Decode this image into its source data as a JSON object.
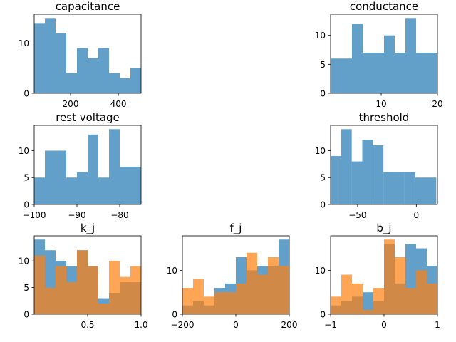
{
  "chart_data": [
    {
      "id": "capacitance",
      "type": "bar",
      "title": "capacitance",
      "xlim": [
        48,
        495
      ],
      "ylim": [
        0,
        15.75
      ],
      "xticks": [
        200,
        400
      ],
      "yticks": [
        0,
        10
      ],
      "series": [
        {
          "color": "#1f77b4",
          "edges": [
            48,
            92.7,
            137.4,
            182.1,
            226.8,
            271.5,
            316.2,
            360.9,
            405.6,
            450.3,
            495
          ],
          "values": [
            14,
            15,
            12,
            4,
            9,
            7,
            9,
            4,
            3,
            5
          ]
        }
      ]
    },
    {
      "id": "conductance",
      "type": "bar",
      "title": "conductance",
      "xlim": [
        1,
        20
      ],
      "ylim": [
        0,
        13.65
      ],
      "xticks": [
        10,
        20
      ],
      "yticks": [
        0,
        5,
        10
      ],
      "series": [
        {
          "color": "#1f77b4",
          "edges": [
            1,
            2.9,
            4.8,
            6.7,
            8.6,
            10.5,
            12.4,
            14.3,
            16.2,
            18.1,
            20
          ],
          "values": [
            6,
            6,
            12,
            7,
            7,
            10,
            7,
            13,
            7,
            7
          ]
        }
      ]
    },
    {
      "id": "rest-voltage",
      "type": "bar",
      "title": "rest voltage",
      "xlim": [
        -100,
        -75
      ],
      "ylim": [
        0,
        14.7
      ],
      "xticks": [
        -100,
        -90,
        -80
      ],
      "yticks": [
        0,
        5,
        10
      ],
      "series": [
        {
          "color": "#1f77b4",
          "edges": [
            -100,
            -97.5,
            -95,
            -92.5,
            -90,
            -87.5,
            -85,
            -82.5,
            -80,
            -77.5,
            -75
          ],
          "values": [
            5,
            10,
            10,
            5,
            6,
            13,
            5,
            14,
            7,
            7
          ]
        }
      ]
    },
    {
      "id": "threshold",
      "type": "bar",
      "title": "threshold",
      "xlim": [
        -73,
        18
      ],
      "ylim": [
        0,
        14.7
      ],
      "xticks": [
        -50,
        0
      ],
      "yticks": [
        0,
        5,
        10
      ],
      "series": [
        {
          "color": "#1f77b4",
          "edges": [
            -73,
            -64,
            -55,
            -46,
            -37,
            -28,
            -19,
            -10,
            -1,
            8,
            17
          ],
          "values": [
            9,
            14,
            8,
            12,
            11,
            6,
            6,
            6,
            5,
            5
          ]
        }
      ]
    },
    {
      "id": "k-j",
      "type": "bar",
      "title": "k_j",
      "xlim": [
        0,
        1
      ],
      "ylim": [
        0,
        14.7
      ],
      "xticks": [
        0.5,
        1.0
      ],
      "xtick_labels": [
        "0.5",
        "1.0"
      ],
      "yticks": [
        0,
        5,
        10
      ],
      "series": [
        {
          "color": "#1f77b4",
          "edges": [
            0,
            0.1,
            0.2,
            0.3,
            0.4,
            0.5,
            0.6,
            0.7,
            0.8,
            0.9,
            1.0
          ],
          "values": [
            14,
            12,
            10,
            9,
            12,
            9,
            3,
            4,
            6,
            6
          ]
        },
        {
          "color": "#ff7f0e",
          "edges": [
            0,
            0.1,
            0.2,
            0.3,
            0.4,
            0.5,
            0.6,
            0.7,
            0.8,
            0.9,
            1.0
          ],
          "values": [
            11,
            5,
            9,
            6,
            12,
            9,
            2,
            10,
            7,
            9
          ]
        }
      ]
    },
    {
      "id": "f-j",
      "type": "bar",
      "title": "f_j",
      "xlim": [
        -200,
        200
      ],
      "ylim": [
        0,
        17.85
      ],
      "xticks": [
        -200,
        0,
        200
      ],
      "yticks": [
        0,
        10
      ],
      "series": [
        {
          "color": "#1f77b4",
          "edges": [
            -200,
            -160,
            -120,
            -80,
            -40,
            0,
            40,
            80,
            120,
            160,
            200
          ],
          "values": [
            2,
            3,
            2,
            6,
            7,
            13,
            10,
            11,
            11,
            17
          ]
        },
        {
          "color": "#ff7f0e",
          "edges": [
            -200,
            -160,
            -120,
            -80,
            -40,
            0,
            40,
            80,
            120,
            160,
            200
          ],
          "values": [
            6,
            8,
            4,
            5,
            5,
            7,
            14,
            9,
            13,
            11
          ]
        }
      ]
    },
    {
      "id": "b-j",
      "type": "bar",
      "title": "b_j",
      "xlim": [
        -1,
        1
      ],
      "ylim": [
        0,
        17.85
      ],
      "xticks": [
        -1,
        0,
        1
      ],
      "yticks": [
        0,
        10
      ],
      "series": [
        {
          "color": "#1f77b4",
          "edges": [
            -1,
            -0.8,
            -0.6,
            -0.4,
            -0.2,
            0,
            0.2,
            0.4,
            0.6,
            0.8,
            1.0
          ],
          "values": [
            2,
            3,
            4,
            5,
            3,
            16,
            7,
            16,
            15,
            11
          ]
        },
        {
          "color": "#ff7f0e",
          "edges": [
            -1,
            -0.8,
            -0.6,
            -0.4,
            -0.2,
            0,
            0.2,
            0.4,
            0.6,
            0.8,
            1.0
          ],
          "values": [
            4,
            9,
            7,
            1,
            6,
            17,
            13,
            6,
            10,
            7
          ]
        }
      ]
    }
  ]
}
